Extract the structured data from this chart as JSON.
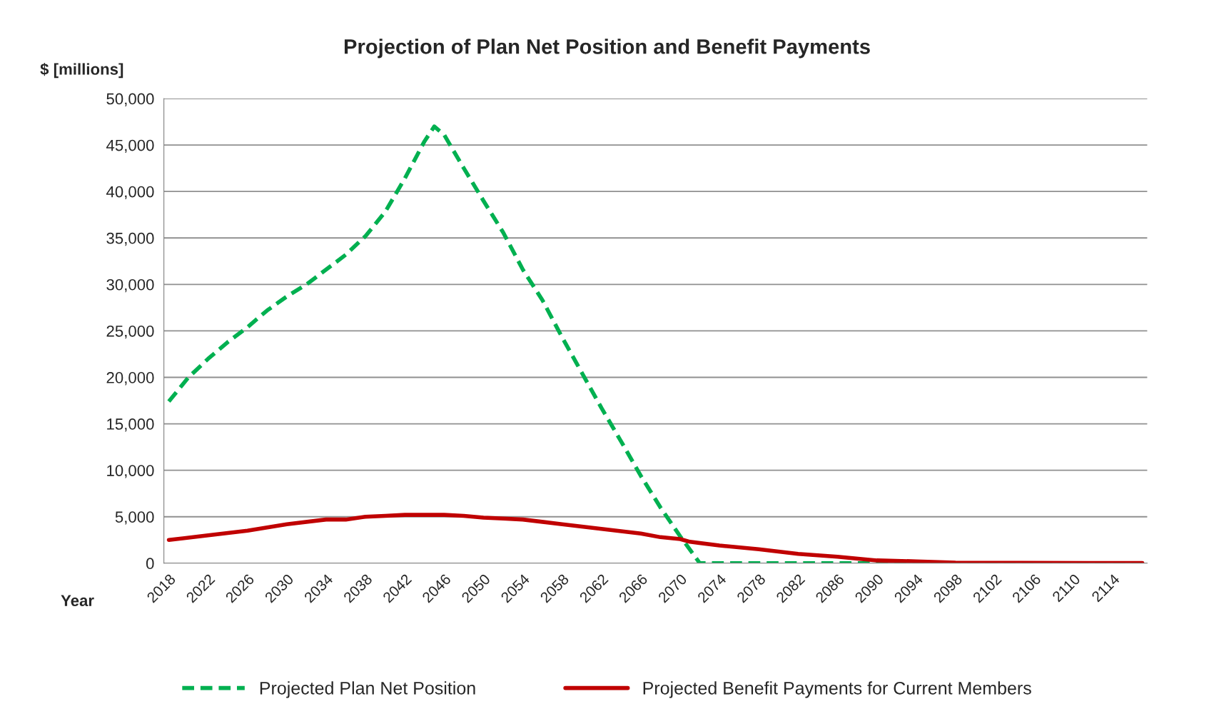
{
  "chart_data": {
    "type": "line",
    "title": "Projection of Plan Net Position and Benefit Payments",
    "ylabel": "$ [millions]",
    "xlabel": "Year",
    "xlim": [
      2017.5,
      2117.5
    ],
    "xticks": [
      2018,
      2022,
      2026,
      2030,
      2034,
      2038,
      2042,
      2046,
      2050,
      2054,
      2058,
      2062,
      2066,
      2070,
      2074,
      2078,
      2082,
      2086,
      2090,
      2094,
      2098,
      2102,
      2106,
      2110,
      2114
    ],
    "ylim": [
      0,
      50000
    ],
    "yticks": [
      {
        "value": 0,
        "label": "0"
      },
      {
        "value": 5000,
        "label": "5,000"
      },
      {
        "value": 10000,
        "label": "10,000"
      },
      {
        "value": 15000,
        "label": "15,000"
      },
      {
        "value": 20000,
        "label": "20,000"
      },
      {
        "value": 25000,
        "label": "25,000"
      },
      {
        "value": 30000,
        "label": "30,000"
      },
      {
        "value": 35000,
        "label": "35,000"
      },
      {
        "value": 40000,
        "label": "40,000"
      },
      {
        "value": 45000,
        "label": "45,000"
      },
      {
        "value": 50000,
        "label": "50,000"
      }
    ],
    "grid": "y",
    "legend": "bottom",
    "series": [
      {
        "name": "Projected Plan Net Position",
        "color": "#00b050",
        "line_style": "dashed",
        "x": [
          2018,
          2020,
          2022,
          2024,
          2026,
          2028,
          2030,
          2032,
          2034,
          2036,
          2038,
          2040,
          2042,
          2044,
          2045,
          2046,
          2048,
          2050,
          2052,
          2054,
          2056,
          2058,
          2060,
          2062,
          2064,
          2066,
          2068,
          2070,
          2072,
          2080,
          2090,
          2100,
          2117
        ],
        "values": [
          17400,
          20000,
          22000,
          23800,
          25400,
          27200,
          28700,
          30000,
          31600,
          33200,
          35200,
          37800,
          41400,
          45400,
          47000,
          46100,
          42500,
          39000,
          35600,
          31600,
          28300,
          24300,
          20500,
          16700,
          13100,
          9400,
          6000,
          2900,
          0,
          0,
          0,
          0,
          0
        ]
      },
      {
        "name": "Projected Benefit Payments for Current Members",
        "color": "#c00000",
        "line_style": "solid",
        "x": [
          2018,
          2022,
          2026,
          2030,
          2034,
          2036,
          2038,
          2040,
          2042,
          2046,
          2048,
          2050,
          2052,
          2054,
          2058,
          2062,
          2066,
          2068,
          2070,
          2071,
          2074,
          2078,
          2082,
          2086,
          2090,
          2094,
          2098,
          2117
        ],
        "values": [
          2500,
          3000,
          3500,
          4200,
          4700,
          4700,
          5000,
          5100,
          5200,
          5200,
          5100,
          4900,
          4800,
          4700,
          4200,
          3700,
          3200,
          2800,
          2600,
          2300,
          1900,
          1500,
          1000,
          700,
          300,
          200,
          50,
          20
        ]
      }
    ]
  }
}
